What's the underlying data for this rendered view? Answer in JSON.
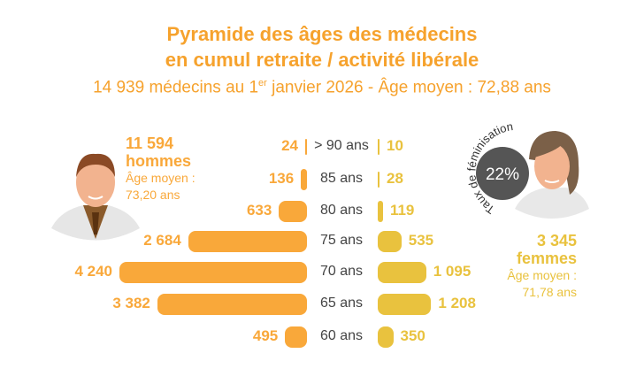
{
  "title_line1": "Pyramide des âges des médecins",
  "title_line2": "en cumul retraite / activité libérale",
  "subtitle_pre": "14 939 médecins au 1",
  "subtitle_sup": "er",
  "subtitle_post": " janvier 2026 - Âge moyen : 72,88 ans",
  "men": {
    "count": "11 594",
    "label": "hommes",
    "avg_label": "Âge moyen :",
    "avg": "73,20 ans"
  },
  "women": {
    "count": "3 345",
    "label": "femmes",
    "avg_label": "Âge moyen :",
    "avg": "71,78 ans"
  },
  "feminisation": {
    "label": "Taux de féminisation",
    "value": "22%"
  },
  "colors": {
    "men": "#F9A83A",
    "women": "#E9C23E",
    "title": "#F6A22D"
  },
  "chart_data": {
    "type": "bar",
    "categories": [
      "> 90 ans",
      "85 ans",
      "80 ans",
      "75 ans",
      "70 ans",
      "65 ans",
      "60 ans"
    ],
    "series": [
      {
        "name": "hommes",
        "values": [
          24,
          136,
          633,
          2684,
          4240,
          3382,
          495
        ],
        "labels": [
          "24",
          "136",
          "633",
          "2 684",
          "4 240",
          "3 382",
          "495"
        ]
      },
      {
        "name": "femmes",
        "values": [
          10,
          28,
          119,
          535,
          1095,
          1208,
          350
        ],
        "labels": [
          "10",
          "28",
          "119",
          "535",
          "1 095",
          "1 208",
          "350"
        ]
      }
    ]
  }
}
